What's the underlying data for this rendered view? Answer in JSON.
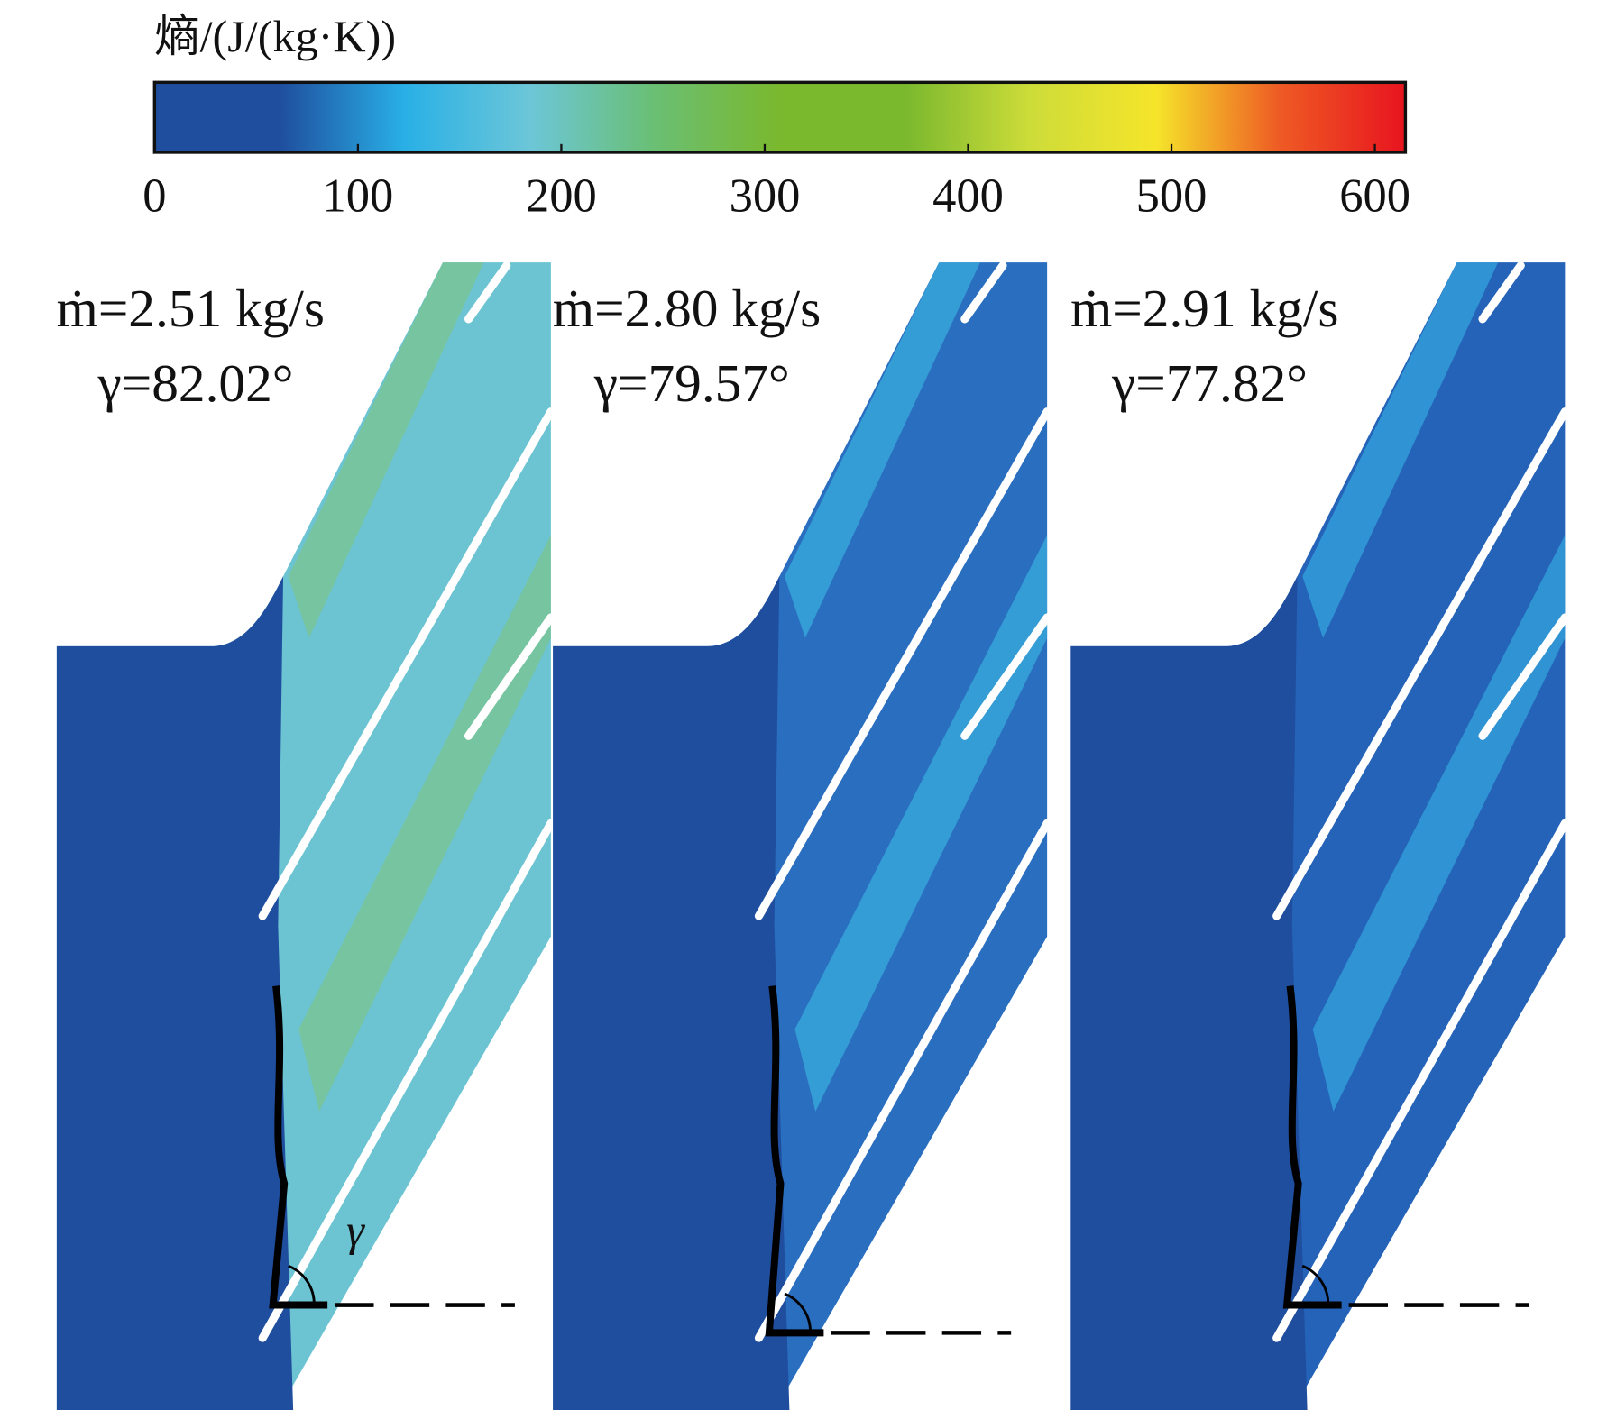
{
  "colorbar": {
    "title": "熵/(J/(kg·K))",
    "range": [
      0,
      615
    ],
    "ticks": [
      0,
      100,
      200,
      300,
      400,
      500,
      600
    ],
    "colors": [
      "#1f4e9e",
      "#1f4e9e",
      "#29b0e6",
      "#6cc6d8",
      "#6abf73",
      "#7ab82e",
      "#7ab82e",
      "#cddc39",
      "#f5e52a",
      "#ee5a24",
      "#e8141f"
    ]
  },
  "panels": [
    {
      "mass_flow": "ṁ=2.51 kg/s",
      "angle": "γ=82.02°",
      "angle_symbol": "γ"
    },
    {
      "mass_flow": "ṁ=2.80 kg/s",
      "angle": "γ=79.57°"
    },
    {
      "mass_flow": "ṁ=2.91 kg/s",
      "angle": "γ=77.82°"
    }
  ]
}
